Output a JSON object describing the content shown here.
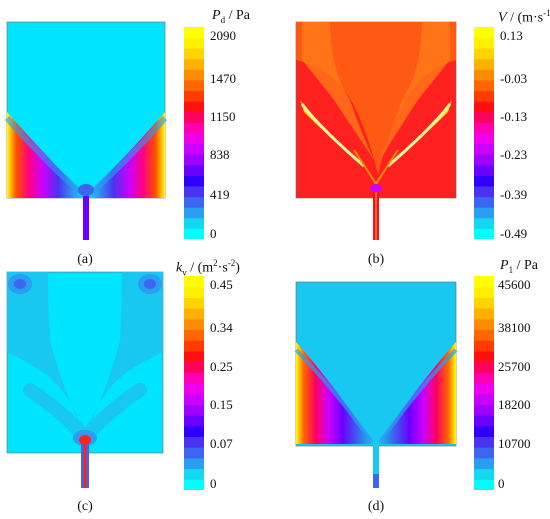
{
  "panels": [
    {
      "id": "a",
      "caption": "(a)",
      "title": {
        "sym": "P",
        "sub": "d",
        "unit_pre": " / Pa",
        "unit_sup": "",
        "unit_post": ""
      },
      "ticks": [
        "2090",
        "1470",
        "1150",
        "838",
        "419",
        "0"
      ],
      "colormap": [
        "#00ffff",
        "#14d8f0",
        "#2a9ef0",
        "#3c66f0",
        "#4a33f0",
        "#3000ff",
        "#6a00ff",
        "#a000ff",
        "#cc00ff",
        "#ee00ee",
        "#ff00b0",
        "#ff0060",
        "#ff1010",
        "#ff3b00",
        "#ff6600",
        "#ff8c00",
        "#ffb000",
        "#ffd400",
        "#fff000",
        "#ffff00"
      ]
    },
    {
      "id": "b",
      "caption": "(b)",
      "title": {
        "sym": "V",
        "sub": "",
        "unit_pre": " / (m·s",
        "unit_sup": "-1",
        "unit_post": ")"
      },
      "ticks": [
        "0.13",
        "-0.03",
        "-0.13",
        "-0.23",
        "-0.39",
        "-0.49"
      ],
      "colormap": [
        "#00ffff",
        "#14d8f0",
        "#2a9ef0",
        "#3c66f0",
        "#4a33f0",
        "#3000ff",
        "#6a00ff",
        "#a000ff",
        "#cc00ff",
        "#ee00ee",
        "#ff00b0",
        "#ff0060",
        "#ff1010",
        "#ff3b00",
        "#ff6600",
        "#ff8c00",
        "#ffb000",
        "#ffd400",
        "#fff000",
        "#ffff00"
      ]
    },
    {
      "id": "c",
      "caption": "(c)",
      "title": {
        "sym": "k",
        "sub": "v",
        "unit_pre": " / (m",
        "unit_sup": "2",
        "unit_post": "·s",
        "unit_sup2": "-2",
        "unit_tail": ")"
      },
      "ticks": [
        "0.45",
        "0.34",
        "0.25",
        "0.15",
        "0.07",
        "0"
      ],
      "colormap": [
        "#00ffff",
        "#14d8f0",
        "#2a9ef0",
        "#3c66f0",
        "#4a33f0",
        "#3000ff",
        "#6a00ff",
        "#a000ff",
        "#cc00ff",
        "#ee00ee",
        "#ff00b0",
        "#ff0060",
        "#ff1010",
        "#ff3b00",
        "#ff6600",
        "#ff8c00",
        "#ffb000",
        "#ffd400",
        "#fff000",
        "#ffff00"
      ]
    },
    {
      "id": "d",
      "caption": "(d)",
      "title": {
        "sym": "P",
        "sub": "1",
        "unit_pre": " / Pa",
        "unit_sup": "",
        "unit_post": ""
      },
      "ticks": [
        "45600",
        "38100",
        "25700",
        "18200",
        "10700",
        "0"
      ],
      "colormap": [
        "#00ffff",
        "#14d8f0",
        "#2a9ef0",
        "#3c66f0",
        "#4a33f0",
        "#3000ff",
        "#6a00ff",
        "#a000ff",
        "#cc00ff",
        "#ee00ee",
        "#ff00b0",
        "#ff0060",
        "#ff1010",
        "#ff3b00",
        "#ff6600",
        "#ff8c00",
        "#ffb000",
        "#ffd400",
        "#fff000",
        "#ffff00"
      ]
    }
  ],
  "colors": {
    "cyan": "#00e5ff",
    "light_blue": "#18c8f0",
    "red": "#ff2020",
    "orange": "#ff5a14",
    "yellow": "#ffff00",
    "blue": "#3a5cf0",
    "violet": "#7a00ff"
  }
}
